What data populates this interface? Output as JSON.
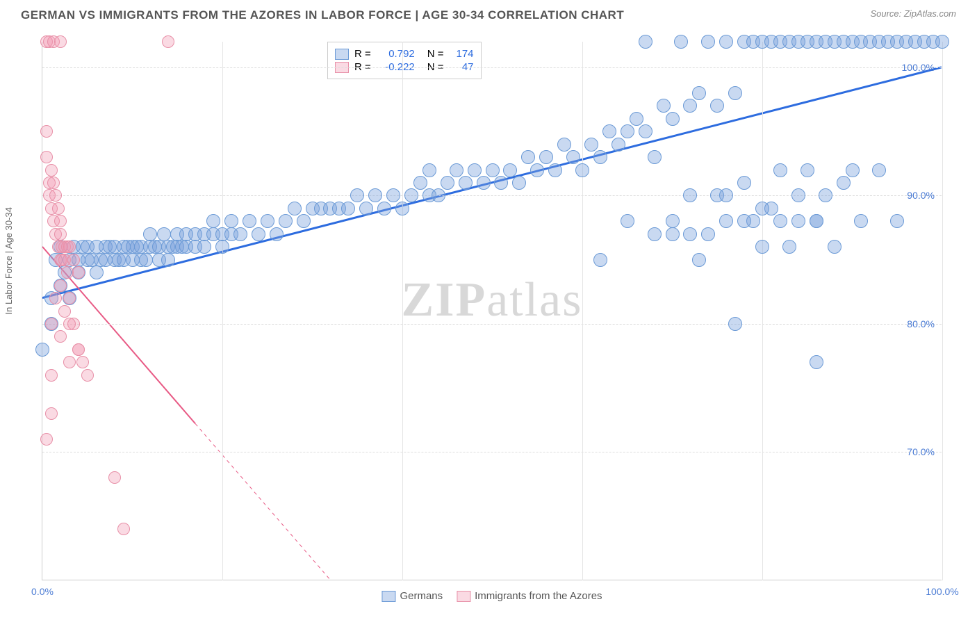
{
  "header": {
    "title": "GERMAN VS IMMIGRANTS FROM THE AZORES IN LABOR FORCE | AGE 30-34 CORRELATION CHART",
    "source": "Source: ZipAtlas.com"
  },
  "chart": {
    "type": "scatter",
    "ylabel": "In Labor Force | Age 30-34",
    "watermark_a": "ZIP",
    "watermark_b": "atlas",
    "xlim": [
      0,
      100
    ],
    "ylim": [
      60,
      102
    ],
    "yticks": [
      {
        "v": 70,
        "label": "70.0%"
      },
      {
        "v": 80,
        "label": "80.0%"
      },
      {
        "v": 90,
        "label": "90.0%"
      },
      {
        "v": 100,
        "label": "100.0%"
      }
    ],
    "xticks": [
      {
        "v": 0,
        "label": "0.0%"
      },
      {
        "v": 20,
        "label": ""
      },
      {
        "v": 40,
        "label": ""
      },
      {
        "v": 60,
        "label": ""
      },
      {
        "v": 80,
        "label": ""
      },
      {
        "v": 100,
        "label": "100.0%"
      }
    ],
    "grid_color": "#dddddd",
    "tick_color_blue": "#4a7bd4",
    "background_color": "#ffffff",
    "series": [
      {
        "name": "Germans",
        "color_fill": "rgba(120,160,220,0.4)",
        "color_stroke": "#6b9ad6",
        "trend_color": "#2d6cdf",
        "trend_width": 3,
        "trend": {
          "x1": 0,
          "y1": 82,
          "x2": 100,
          "y2": 100
        },
        "r_label": "R =",
        "r_value": "0.792",
        "n_label": "N =",
        "n_value": "174",
        "marker_r": 10,
        "points": [
          [
            0,
            78
          ],
          [
            1,
            80
          ],
          [
            1,
            82
          ],
          [
            1.5,
            85
          ],
          [
            2,
            83
          ],
          [
            2,
            86
          ],
          [
            2.5,
            84
          ],
          [
            3,
            82
          ],
          [
            3,
            85
          ],
          [
            3.5,
            86
          ],
          [
            4,
            84
          ],
          [
            4,
            85
          ],
          [
            4.5,
            86
          ],
          [
            5,
            85
          ],
          [
            5,
            86
          ],
          [
            5.5,
            85
          ],
          [
            6,
            86
          ],
          [
            6,
            84
          ],
          [
            6.5,
            85
          ],
          [
            7,
            86
          ],
          [
            7,
            85
          ],
          [
            7.5,
            86
          ],
          [
            8,
            85
          ],
          [
            8,
            86
          ],
          [
            8.5,
            85
          ],
          [
            9,
            86
          ],
          [
            9,
            85
          ],
          [
            9.5,
            86
          ],
          [
            10,
            85
          ],
          [
            10,
            86
          ],
          [
            10.5,
            86
          ],
          [
            11,
            85
          ],
          [
            11,
            86
          ],
          [
            11.5,
            85
          ],
          [
            12,
            86
          ],
          [
            12,
            87
          ],
          [
            12.5,
            86
          ],
          [
            13,
            85
          ],
          [
            13,
            86
          ],
          [
            13.5,
            87
          ],
          [
            14,
            86
          ],
          [
            14,
            85
          ],
          [
            14.5,
            86
          ],
          [
            15,
            87
          ],
          [
            15,
            86
          ],
          [
            15.5,
            86
          ],
          [
            16,
            87
          ],
          [
            16,
            86
          ],
          [
            17,
            87
          ],
          [
            17,
            86
          ],
          [
            18,
            87
          ],
          [
            18,
            86
          ],
          [
            19,
            87
          ],
          [
            19,
            88
          ],
          [
            20,
            87
          ],
          [
            20,
            86
          ],
          [
            21,
            87
          ],
          [
            21,
            88
          ],
          [
            22,
            87
          ],
          [
            23,
            88
          ],
          [
            24,
            87
          ],
          [
            25,
            88
          ],
          [
            26,
            87
          ],
          [
            27,
            88
          ],
          [
            28,
            89
          ],
          [
            29,
            88
          ],
          [
            30,
            89
          ],
          [
            31,
            89
          ],
          [
            32,
            89
          ],
          [
            33,
            89
          ],
          [
            34,
            89
          ],
          [
            35,
            90
          ],
          [
            36,
            89
          ],
          [
            37,
            90
          ],
          [
            38,
            89
          ],
          [
            39,
            90
          ],
          [
            40,
            89
          ],
          [
            41,
            90
          ],
          [
            42,
            91
          ],
          [
            43,
            90
          ],
          [
            43,
            92
          ],
          [
            44,
            90
          ],
          [
            45,
            91
          ],
          [
            46,
            92
          ],
          [
            47,
            91
          ],
          [
            48,
            92
          ],
          [
            49,
            91
          ],
          [
            50,
            92
          ],
          [
            51,
            91
          ],
          [
            52,
            92
          ],
          [
            53,
            91
          ],
          [
            54,
            93
          ],
          [
            55,
            92
          ],
          [
            56,
            93
          ],
          [
            57,
            92
          ],
          [
            58,
            94
          ],
          [
            59,
            93
          ],
          [
            60,
            92
          ],
          [
            61,
            94
          ],
          [
            62,
            93
          ],
          [
            62,
            85
          ],
          [
            63,
            95
          ],
          [
            64,
            94
          ],
          [
            65,
            95
          ],
          [
            65,
            88
          ],
          [
            66,
            96
          ],
          [
            67,
            95
          ],
          [
            67,
            102
          ],
          [
            68,
            93
          ],
          [
            69,
            97
          ],
          [
            70,
            96
          ],
          [
            70,
            88
          ],
          [
            71,
            102
          ],
          [
            72,
            97
          ],
          [
            72,
            90
          ],
          [
            73,
            98
          ],
          [
            73,
            85
          ],
          [
            74,
            102
          ],
          [
            75,
            97
          ],
          [
            75,
            90
          ],
          [
            76,
            102
          ],
          [
            76,
            88
          ],
          [
            77,
            98
          ],
          [
            77,
            80
          ],
          [
            78,
            102
          ],
          [
            78,
            91
          ],
          [
            79,
            102
          ],
          [
            79,
            88
          ],
          [
            80,
            102
          ],
          [
            80,
            86
          ],
          [
            81,
            102
          ],
          [
            81,
            89
          ],
          [
            82,
            102
          ],
          [
            82,
            92
          ],
          [
            83,
            102
          ],
          [
            83,
            86
          ],
          [
            84,
            102
          ],
          [
            84,
            90
          ],
          [
            85,
            102
          ],
          [
            85,
            92
          ],
          [
            86,
            102
          ],
          [
            86,
            88
          ],
          [
            86,
            77
          ],
          [
            87,
            102
          ],
          [
            87,
            90
          ],
          [
            88,
            102
          ],
          [
            88,
            86
          ],
          [
            89,
            102
          ],
          [
            89,
            91
          ],
          [
            90,
            102
          ],
          [
            90,
            92
          ],
          [
            91,
            102
          ],
          [
            91,
            88
          ],
          [
            92,
            102
          ],
          [
            93,
            102
          ],
          [
            93,
            92
          ],
          [
            94,
            102
          ],
          [
            95,
            102
          ],
          [
            95,
            88
          ],
          [
            96,
            102
          ],
          [
            97,
            102
          ],
          [
            98,
            102
          ],
          [
            99,
            102
          ],
          [
            100,
            102
          ],
          [
            68,
            87
          ],
          [
            70,
            87
          ],
          [
            72,
            87
          ],
          [
            74,
            87
          ],
          [
            76,
            90
          ],
          [
            78,
            88
          ],
          [
            80,
            89
          ],
          [
            82,
            88
          ],
          [
            84,
            88
          ],
          [
            86,
            88
          ]
        ]
      },
      {
        "name": "Immigrants from the Azores",
        "color_fill": "rgba(240,150,175,0.35)",
        "color_stroke": "#e890a8",
        "trend_color": "#e85a85",
        "trend_width": 2,
        "trend": {
          "x1": 0,
          "y1": 86,
          "x2": 32,
          "y2": 60
        },
        "trend_dash_from_x": 17,
        "r_label": "R =",
        "r_value": "-0.222",
        "n_label": "N =",
        "n_value": "47",
        "marker_r": 9,
        "points": [
          [
            0.5,
            102
          ],
          [
            0.8,
            102
          ],
          [
            1.2,
            102
          ],
          [
            2,
            102
          ],
          [
            14,
            102
          ],
          [
            0.5,
            95
          ],
          [
            0.5,
            93
          ],
          [
            0.8,
            91
          ],
          [
            0.8,
            90
          ],
          [
            1,
            92
          ],
          [
            1,
            89
          ],
          [
            1.2,
            91
          ],
          [
            1.2,
            88
          ],
          [
            1.5,
            90
          ],
          [
            1.5,
            87
          ],
          [
            1.8,
            89
          ],
          [
            1.8,
            86
          ],
          [
            2,
            88
          ],
          [
            2,
            85
          ],
          [
            2,
            87
          ],
          [
            2.2,
            86
          ],
          [
            2.2,
            85
          ],
          [
            2.5,
            86
          ],
          [
            2.5,
            85
          ],
          [
            2.8,
            86
          ],
          [
            2.8,
            84
          ],
          [
            3,
            86
          ],
          [
            3,
            82
          ],
          [
            3.5,
            85
          ],
          [
            3.5,
            80
          ],
          [
            4,
            84
          ],
          [
            4,
            78
          ],
          [
            4.5,
            77
          ],
          [
            5,
            76
          ],
          [
            1,
            73
          ],
          [
            0.5,
            71
          ],
          [
            1,
            80
          ],
          [
            1.5,
            82
          ],
          [
            2,
            83
          ],
          [
            2.5,
            81
          ],
          [
            3,
            80
          ],
          [
            4,
            78
          ],
          [
            8,
            68
          ],
          [
            9,
            64
          ],
          [
            3,
            77
          ],
          [
            2,
            79
          ],
          [
            1,
            76
          ]
        ]
      }
    ],
    "legend": {
      "series1": "Germans",
      "series2": "Immigrants from the Azores"
    }
  }
}
